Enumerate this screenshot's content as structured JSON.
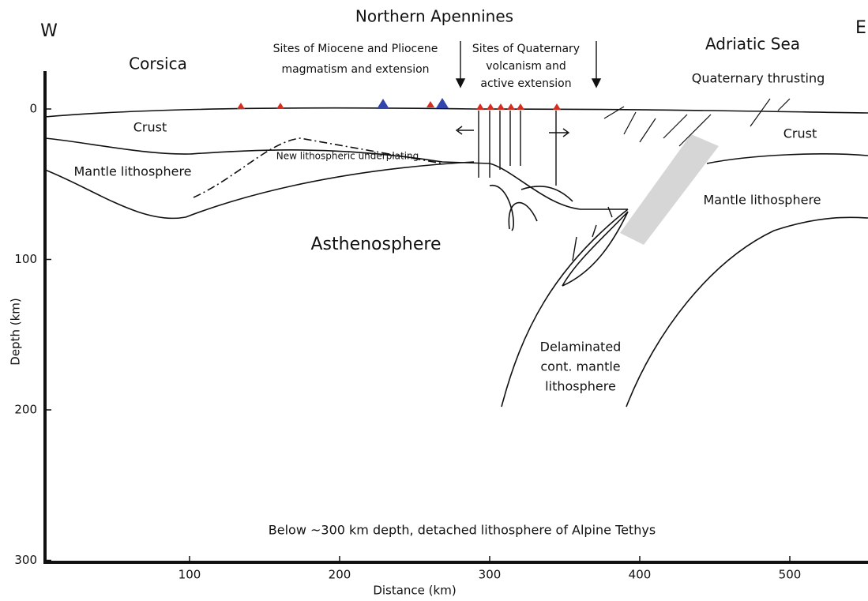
{
  "labels": {
    "west": "W",
    "east": "E",
    "title": "Northern Apennines",
    "corsica": "Corsica",
    "miocene_sites": [
      "Sites of Miocene and Pliocene",
      "magmatism and extension"
    ],
    "quaternary_sites": [
      "Sites of Quaternary",
      "volcanism and",
      "active extension"
    ],
    "adriatic": "Adriatic Sea",
    "thrusting": "Quaternary thrusting",
    "crust_left": "Crust",
    "crust_right": "Crust",
    "mantle_left": "Mantle lithosphere",
    "mantle_right": "Mantle lithosphere",
    "underplating": "New lithospheric underplating",
    "asthenosphere": "Asthenosphere",
    "delaminated": [
      "Delaminated",
      "cont. mantle",
      "lithosphere"
    ],
    "tethys": "Below ~300 km depth, detached lithosphere of Alpine Tethys"
  },
  "axes": {
    "x": {
      "label": "Distance (km)",
      "ticks": [
        100,
        200,
        300,
        400,
        500
      ]
    },
    "y": {
      "label": "Depth (km)",
      "ticks": [
        0,
        100,
        200,
        300
      ]
    }
  }
}
